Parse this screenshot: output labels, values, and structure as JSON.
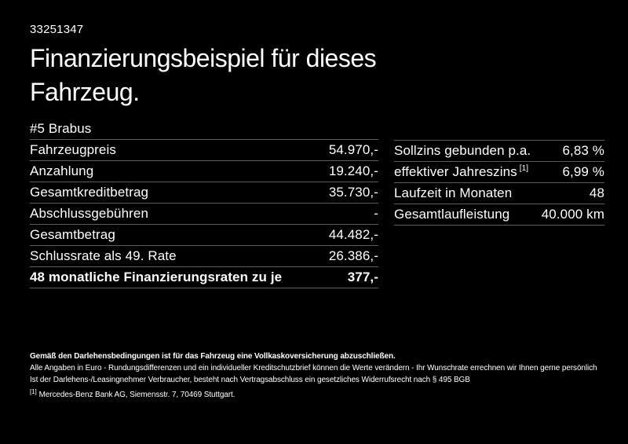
{
  "header": {
    "listing_id": "33251347",
    "title_line1": "Finanzierungsbeispiel für dieses",
    "title_line2": "Fahrzeug."
  },
  "vehicle": {
    "name": "#5 Brabus"
  },
  "finance_table": {
    "rows": [
      {
        "label": "Fahrzeugpreis",
        "value": "54.970,-"
      },
      {
        "label": "Anzahlung",
        "value": "19.240,-"
      },
      {
        "label": "Gesamtkreditbetrag",
        "value": "35.730,-"
      },
      {
        "label": "Abschlussgebühren",
        "value": "-"
      },
      {
        "label": "Gesamtbetrag",
        "value": "44.482,-"
      },
      {
        "label": "Schlussrate als 49. Rate",
        "value": "26.386,-"
      },
      {
        "label": "48 monatliche Finanzierungsraten zu je",
        "value": "377,-",
        "bold": true
      }
    ]
  },
  "conditions_table": {
    "rows": [
      {
        "label": "Sollzins gebunden p.a.",
        "value": "6,83 %"
      },
      {
        "label": "effektiver Jahreszins",
        "label_sup": "[1]",
        "value": "6,99 %"
      },
      {
        "label": "Laufzeit in Monaten",
        "value": "48"
      },
      {
        "label": "Gesamtlaufleistung",
        "value": "40.000 km"
      }
    ]
  },
  "footer": {
    "insurance_note": "Gemäß den Darlehensbedingungen ist für das Fahrzeug eine Vollkaskoversicherung abzuschließen.",
    "info_line1": "Alle Angaben in Euro - Rundungsdifferenzen und ein individueller Kreditschutzbrief können die Werte verändern - Ihr Wunschrate errechnen wir Ihnen gerne persönlich",
    "info_line2": "Ist der Darlehens-/Leasingnehmer Verbraucher, besteht nach Vertragsabschluss ein gesetzliches Widerrufsrecht nach § 495 BGB",
    "footnote_marker": "[1]",
    "footnote_text": "Mercedes-Benz Bank AG, Siemensstr. 7, 70469 Stuttgart."
  },
  "colors": {
    "background": "#000000",
    "text": "#ffffff",
    "divider": "#5c5c5c"
  }
}
